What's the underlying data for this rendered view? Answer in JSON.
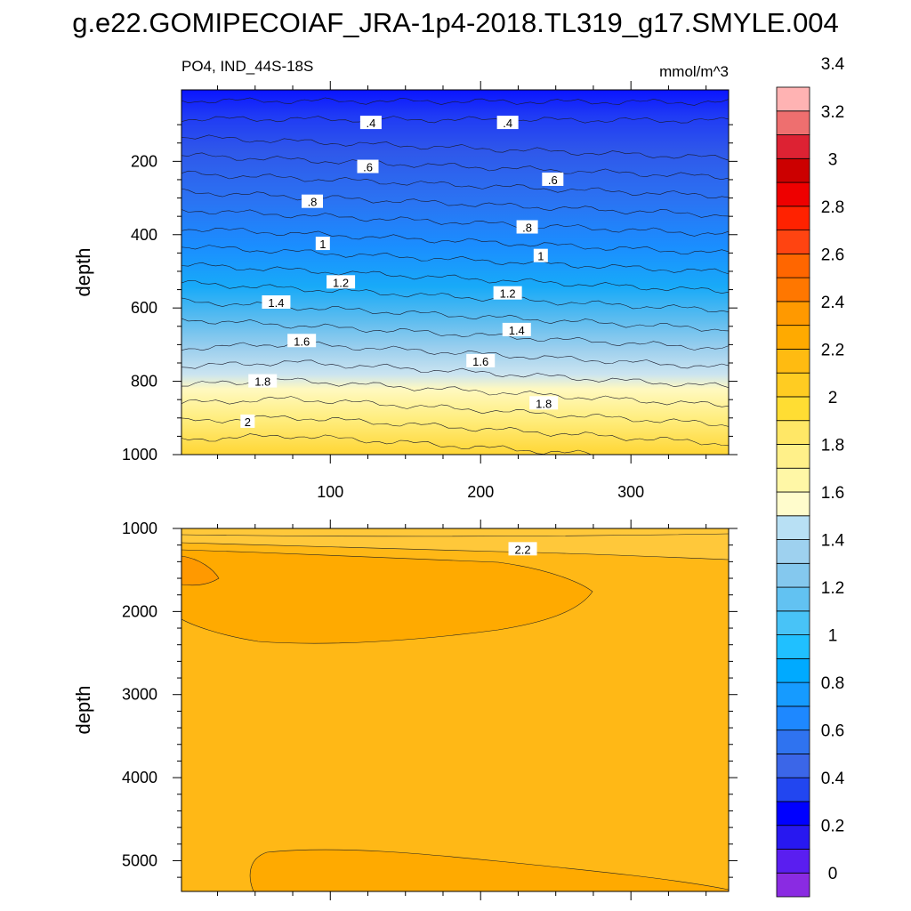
{
  "title": "g.e22.GOMIPECOIAF_JRA-1p4-2018.TL319_g17.SMYLE.004",
  "variable_label": "PO4, IND_44S-18S",
  "units_label": "mmol/m^3",
  "chart_data": [
    {
      "type": "heatmap",
      "name": "upper panel",
      "ylabel": "depth",
      "xlim": [
        1,
        365
      ],
      "ylim": [
        1000,
        5
      ],
      "x_ticks": [
        100,
        200,
        300
      ],
      "y_ticks": [
        200,
        400,
        600,
        800,
        1000
      ],
      "y_reversed": true,
      "contour_interval": 0.2,
      "contour_labels": [
        {
          "text": ".4",
          "x": 127,
          "y": 95
        },
        {
          "text": ".4",
          "x": 218,
          "y": 95
        },
        {
          "text": ".6",
          "x": 125,
          "y": 215
        },
        {
          "text": ".6",
          "x": 248,
          "y": 250
        },
        {
          "text": ".8",
          "x": 88,
          "y": 310
        },
        {
          "text": ".8",
          "x": 231,
          "y": 380
        },
        {
          "text": "1",
          "x": 95,
          "y": 425
        },
        {
          "text": "1",
          "x": 240,
          "y": 458
        },
        {
          "text": "1.2",
          "x": 107,
          "y": 530
        },
        {
          "text": "1.2",
          "x": 218,
          "y": 560
        },
        {
          "text": "1.4",
          "x": 64,
          "y": 585
        },
        {
          "text": "1.4",
          "x": 224,
          "y": 660
        },
        {
          "text": "1.6",
          "x": 81,
          "y": 690
        },
        {
          "text": "1.6",
          "x": 200,
          "y": 745
        },
        {
          "text": "1.8",
          "x": 55,
          "y": 800
        },
        {
          "text": "1.8",
          "x": 242,
          "y": 860
        },
        {
          "text": "2",
          "x": 45,
          "y": 910
        }
      ]
    },
    {
      "type": "heatmap",
      "name": "lower panel",
      "ylabel": "depth",
      "xlim": [
        1,
        365
      ],
      "ylim": [
        5370,
        1000
      ],
      "y_ticks": [
        1000,
        2000,
        3000,
        4000,
        5000
      ],
      "y_reversed": true,
      "contour_interval": 0.2,
      "contour_labels": [
        {
          "text": "2.2",
          "x": 228,
          "y": 1250
        }
      ]
    }
  ],
  "colorbar": {
    "levels": [
      "0",
      "0.2",
      "0.4",
      "0.6",
      "0.8",
      "1",
      "1.2",
      "1.4",
      "1.6",
      "1.8",
      "2",
      "2.2",
      "2.4",
      "2.6",
      "2.8",
      "3",
      "3.2",
      "3.4"
    ],
    "colors": [
      "#8a2be2",
      "#5a1ef0",
      "#2818f0",
      "#0000ff",
      "#2246f0",
      "#3b66e8",
      "#2f73f0",
      "#1e88ff",
      "#169bff",
      "#00aaff",
      "#20c0ff",
      "#48c3f7",
      "#62c2f2",
      "#84c8ee",
      "#9ed1ef",
      "#b8e0f4",
      "#fffccc",
      "#fff7a6",
      "#fff089",
      "#ffe766",
      "#ffdd33",
      "#ffcc22",
      "#ffbb11",
      "#ffaa00",
      "#ff9900",
      "#ff7700",
      "#ff6600",
      "#ff4411",
      "#ff2200",
      "#ee0000",
      "#cc0000",
      "#dd2233",
      "#ee6f6f",
      "#ffb3b3"
    ]
  }
}
